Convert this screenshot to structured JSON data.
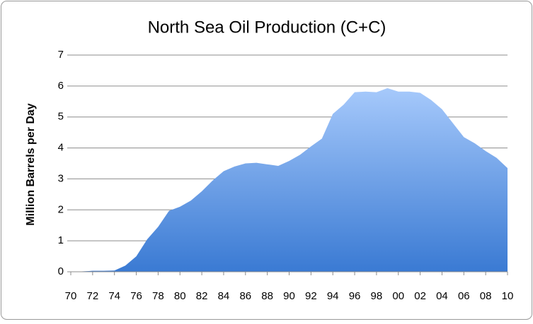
{
  "chart_data": {
    "type": "area",
    "title": "North Sea Oil Production (C+C)",
    "y_label": "Million Barrels per Day",
    "categories": [
      "70",
      null,
      "72",
      null,
      "74",
      null,
      "76",
      null,
      "78",
      null,
      "80",
      null,
      "82",
      null,
      "84",
      null,
      "86",
      null,
      "88",
      null,
      "90",
      null,
      "92",
      null,
      "94",
      null,
      "96",
      null,
      "98",
      null,
      "00",
      null,
      "02",
      null,
      "04",
      null,
      "06",
      null,
      "08",
      null,
      "10"
    ],
    "values": [
      0,
      0.01,
      0.03,
      0.03,
      0.04,
      0.2,
      0.5,
      1.05,
      1.45,
      1.97,
      2.1,
      2.3,
      2.6,
      2.95,
      3.25,
      3.4,
      3.5,
      3.52,
      3.47,
      3.42,
      3.58,
      3.78,
      4.05,
      4.3,
      5.1,
      5.4,
      5.8,
      5.82,
      5.8,
      5.93,
      5.82,
      5.82,
      5.78,
      5.55,
      5.25,
      4.8,
      4.35,
      4.15,
      3.9,
      3.68,
      3.35
    ],
    "colors": [
      "#a6c9fb",
      "#3a7ad3"
    ],
    "ylim": [
      0,
      7
    ],
    "yticks": [
      0,
      1,
      2,
      3,
      4,
      5,
      6,
      7
    ],
    "grid": true
  }
}
